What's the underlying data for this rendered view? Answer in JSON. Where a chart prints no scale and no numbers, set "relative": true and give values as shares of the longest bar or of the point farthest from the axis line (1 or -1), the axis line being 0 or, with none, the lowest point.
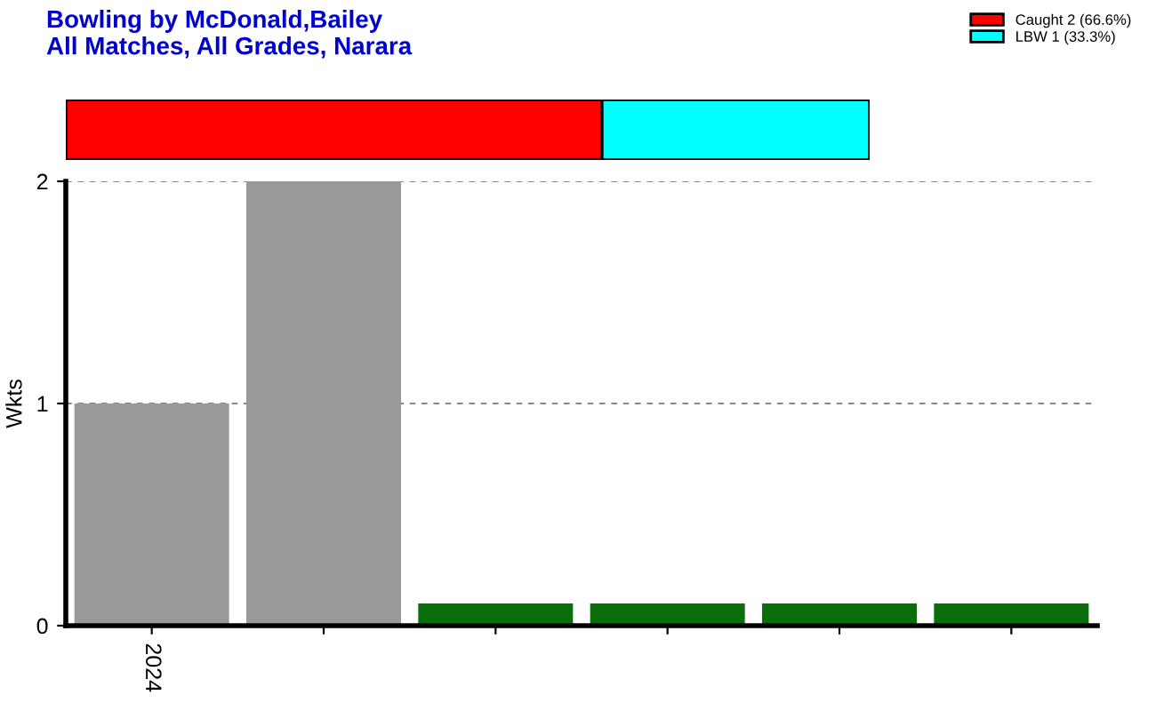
{
  "chart_data": [
    {
      "type": "bar",
      "title": "Bowling by McDonald,Bailey",
      "subtitle": "All Matches, All Grades, Narara",
      "orientation": "horizontal",
      "stacked": true,
      "relative": true,
      "categories": [
        null
      ],
      "legend": "top right",
      "series": [
        {
          "name": "Caught 2 (66.6%)",
          "color": "#ff0000",
          "values": [
            0.667
          ]
        },
        {
          "name": "LBW 1 (33.3%)",
          "color": "#00ffff",
          "values": [
            0.333
          ]
        }
      ]
    },
    {
      "type": "bar",
      "ylabel": "Wkts",
      "categories": [
        "2024",
        null,
        null,
        null,
        null,
        null
      ],
      "values": [
        1,
        2,
        0.1,
        0.1,
        0.1,
        0.1
      ],
      "colors": [
        "#999999",
        "#999999",
        "#0a6e0a",
        "#0a6e0a",
        "#0a6e0a",
        "#0a6e0a"
      ],
      "ylim": [
        0,
        2
      ],
      "yticks": [
        0,
        1,
        2
      ],
      "grid": "y"
    }
  ]
}
